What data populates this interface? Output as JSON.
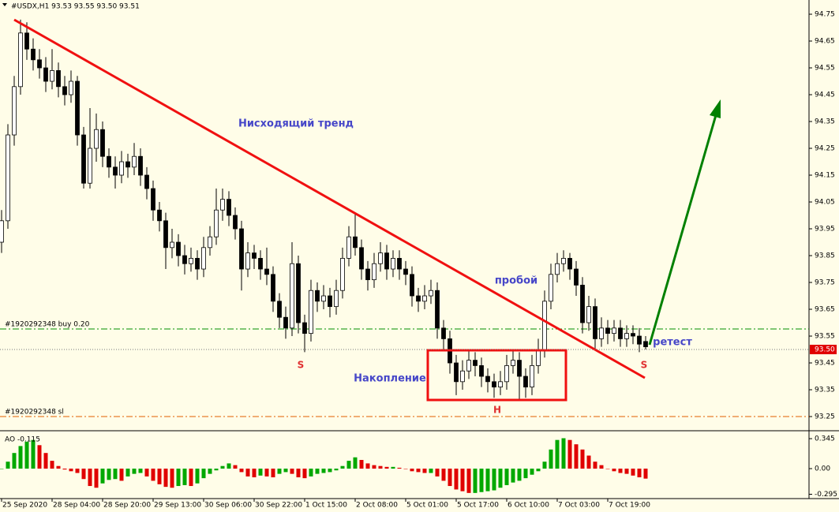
{
  "chart_data": [
    {
      "type": "candlestick",
      "header": "#USDX,H1  93.53 93.55 93.50 93.51",
      "ylim": [
        93.203,
        94.803
      ],
      "xlim": [
        -0.25,
        127.75
      ],
      "yticks": [
        94.75,
        94.65,
        94.55,
        94.45,
        94.35,
        94.25,
        94.15,
        94.05,
        93.95,
        93.85,
        93.75,
        93.65,
        93.55,
        93.45,
        93.35,
        93.25
      ],
      "bid": {
        "value": 93.5,
        "label": "93.50"
      },
      "up_color": "#ffffff",
      "down_color": "#000000",
      "wick_color": "#000000",
      "orders": {
        "buy": "#1920292348 buy 0.20",
        "sl": "#1920292348 sl"
      },
      "annotations": {
        "trend": "Нисходящий тренд",
        "breakout": "пробой",
        "retest": "ретест",
        "accumulation": "Накопление",
        "s1": "S",
        "s2": "S",
        "h": "H"
      },
      "ohlc": [
        [
          93.9,
          94.02,
          93.86,
          93.98
        ],
        [
          93.98,
          94.34,
          93.95,
          94.3
        ],
        [
          94.3,
          94.52,
          94.26,
          94.48
        ],
        [
          94.48,
          94.73,
          94.45,
          94.68
        ],
        [
          94.68,
          94.72,
          94.58,
          94.62
        ],
        [
          94.62,
          94.66,
          94.54,
          94.58
        ],
        [
          94.58,
          94.62,
          94.51,
          94.55
        ],
        [
          94.55,
          94.59,
          94.46,
          94.5
        ],
        [
          94.5,
          94.62,
          94.47,
          94.54
        ],
        [
          94.54,
          94.57,
          94.44,
          94.48
        ],
        [
          94.48,
          94.52,
          94.41,
          94.45
        ],
        [
          94.45,
          94.54,
          94.42,
          94.5
        ],
        [
          94.5,
          94.52,
          94.26,
          94.3
        ],
        [
          94.3,
          94.33,
          94.1,
          94.12
        ],
        [
          94.12,
          94.4,
          94.1,
          94.25
        ],
        [
          94.25,
          94.38,
          94.2,
          94.32
        ],
        [
          94.32,
          94.35,
          94.18,
          94.22
        ],
        [
          94.22,
          94.25,
          94.14,
          94.18
        ],
        [
          94.18,
          94.22,
          94.1,
          94.15
        ],
        [
          94.15,
          94.24,
          94.12,
          94.2
        ],
        [
          94.2,
          94.23,
          94.14,
          94.18
        ],
        [
          94.18,
          94.27,
          94.15,
          94.22
        ],
        [
          94.22,
          94.25,
          94.11,
          94.15
        ],
        [
          94.15,
          94.18,
          94.06,
          94.1
        ],
        [
          94.1,
          94.13,
          93.98,
          94.02
        ],
        [
          94.02,
          94.05,
          93.94,
          93.98
        ],
        [
          93.98,
          94.01,
          93.8,
          93.88
        ],
        [
          93.88,
          93.95,
          93.84,
          93.9
        ],
        [
          93.9,
          93.93,
          93.81,
          93.85
        ],
        [
          93.85,
          93.89,
          93.78,
          93.82
        ],
        [
          93.82,
          93.88,
          93.79,
          93.84
        ],
        [
          93.84,
          93.87,
          93.76,
          93.8
        ],
        [
          93.8,
          93.92,
          93.77,
          93.88
        ],
        [
          93.88,
          93.96,
          93.85,
          93.92
        ],
        [
          93.92,
          94.1,
          93.89,
          94.02
        ],
        [
          94.02,
          94.1,
          93.98,
          94.06
        ],
        [
          94.06,
          94.09,
          93.96,
          94.0
        ],
        [
          94.0,
          94.03,
          93.91,
          93.95
        ],
        [
          93.95,
          93.98,
          93.72,
          93.8
        ],
        [
          93.8,
          93.9,
          93.77,
          93.86
        ],
        [
          93.86,
          93.89,
          93.8,
          93.84
        ],
        [
          93.84,
          93.87,
          93.76,
          93.8
        ],
        [
          93.8,
          93.88,
          93.74,
          93.78
        ],
        [
          93.78,
          93.81,
          93.64,
          93.68
        ],
        [
          93.68,
          93.71,
          93.58,
          93.62
        ],
        [
          93.62,
          93.66,
          93.54,
          93.58
        ],
        [
          93.58,
          93.9,
          93.55,
          93.82
        ],
        [
          93.82,
          93.85,
          93.56,
          93.6
        ],
        [
          93.6,
          93.63,
          93.49,
          93.56
        ],
        [
          93.56,
          93.76,
          93.53,
          93.72
        ],
        [
          93.72,
          93.75,
          93.64,
          93.68
        ],
        [
          93.68,
          93.74,
          93.65,
          93.7
        ],
        [
          93.7,
          93.73,
          93.62,
          93.66
        ],
        [
          93.66,
          93.76,
          93.63,
          93.72
        ],
        [
          93.72,
          93.88,
          93.69,
          93.84
        ],
        [
          93.84,
          93.96,
          93.81,
          93.92
        ],
        [
          93.92,
          94.01,
          93.85,
          93.88
        ],
        [
          93.88,
          93.91,
          93.76,
          93.8
        ],
        [
          93.8,
          93.83,
          93.72,
          93.76
        ],
        [
          93.76,
          93.86,
          93.73,
          93.82
        ],
        [
          93.82,
          93.9,
          93.79,
          93.86
        ],
        [
          93.86,
          93.89,
          93.76,
          93.8
        ],
        [
          93.8,
          93.87,
          93.77,
          93.84
        ],
        [
          93.84,
          93.87,
          93.76,
          93.8
        ],
        [
          93.8,
          93.83,
          93.74,
          93.78
        ],
        [
          93.78,
          93.81,
          93.66,
          93.7
        ],
        [
          93.7,
          93.73,
          93.64,
          93.68
        ],
        [
          93.68,
          93.74,
          93.65,
          93.7
        ],
        [
          93.7,
          93.76,
          93.67,
          93.72
        ],
        [
          93.72,
          93.75,
          93.54,
          93.58
        ],
        [
          93.58,
          93.61,
          93.5,
          93.54
        ],
        [
          93.54,
          93.57,
          93.41,
          93.45
        ],
        [
          93.45,
          93.48,
          93.33,
          93.38
        ],
        [
          93.38,
          93.46,
          93.35,
          93.42
        ],
        [
          93.42,
          93.5,
          93.39,
          93.46
        ],
        [
          93.46,
          93.49,
          93.4,
          93.44
        ],
        [
          93.44,
          93.47,
          93.36,
          93.4
        ],
        [
          93.4,
          93.43,
          93.34,
          93.38
        ],
        [
          93.38,
          93.41,
          93.32,
          93.36
        ],
        [
          93.36,
          93.42,
          93.33,
          93.38
        ],
        [
          93.38,
          93.48,
          93.35,
          93.44
        ],
        [
          93.44,
          93.5,
          93.41,
          93.46
        ],
        [
          93.46,
          93.49,
          93.31,
          93.4
        ],
        [
          93.4,
          93.43,
          93.32,
          93.36
        ],
        [
          93.36,
          93.48,
          93.33,
          93.44
        ],
        [
          93.44,
          93.54,
          93.41,
          93.5
        ],
        [
          93.5,
          93.72,
          93.47,
          93.68
        ],
        [
          93.68,
          93.82,
          93.65,
          93.78
        ],
        [
          93.78,
          93.86,
          93.75,
          93.82
        ],
        [
          93.82,
          93.87,
          93.79,
          93.84
        ],
        [
          93.84,
          93.86,
          93.76,
          93.8
        ],
        [
          93.8,
          93.83,
          93.7,
          93.74
        ],
        [
          93.74,
          93.77,
          93.56,
          93.6
        ],
        [
          93.6,
          93.7,
          93.57,
          93.66
        ],
        [
          93.66,
          93.69,
          93.5,
          93.54
        ],
        [
          93.54,
          93.62,
          93.51,
          93.58
        ],
        [
          93.58,
          93.61,
          93.52,
          93.56
        ],
        [
          93.56,
          93.61,
          93.53,
          93.58
        ],
        [
          93.58,
          93.61,
          93.51,
          93.54
        ],
        [
          93.54,
          93.59,
          93.51,
          93.56
        ],
        [
          93.56,
          93.59,
          93.52,
          93.55
        ],
        [
          93.55,
          93.58,
          93.49,
          93.52
        ],
        [
          93.53,
          93.55,
          93.5,
          93.51
        ]
      ]
    },
    {
      "type": "bar",
      "label": "AO -0.115",
      "ylim": [
        -0.345,
        0.418
      ],
      "xlim": [
        -0.25,
        127.75
      ],
      "yticks": [
        0.345,
        {
          "value": 0,
          "label": "0.00"
        },
        -0.295
      ],
      "up_color": "#00a800",
      "down_color": "#e00000",
      "xticks": [
        {
          "value": 0,
          "label": "25 Sep 2020"
        },
        {
          "value": 8,
          "label": "28 Sep 04:00"
        },
        {
          "value": 16,
          "label": "28 Sep 20:00"
        },
        {
          "value": 24,
          "label": "29 Sep 13:00"
        },
        {
          "value": 32,
          "label": "30 Sep 06:00"
        },
        {
          "value": 40,
          "label": "30 Sep 22:00"
        },
        {
          "value": 48,
          "label": "1 Oct 15:00"
        },
        {
          "value": 56,
          "label": "2 Oct 08:00"
        },
        {
          "value": 64,
          "label": "5 Oct 01:00"
        },
        {
          "value": 72,
          "label": "5 Oct 17:00"
        },
        {
          "value": 80,
          "label": "6 Oct 10:00"
        },
        {
          "value": 88,
          "label": "7 Oct 03:00"
        },
        {
          "value": 96,
          "label": "7 Oct 19:00"
        }
      ],
      "values": [
        0.0,
        0.08,
        0.18,
        0.26,
        0.31,
        0.33,
        0.27,
        0.18,
        0.09,
        0.03,
        -0.01,
        -0.03,
        -0.05,
        -0.12,
        -0.2,
        -0.22,
        -0.17,
        -0.13,
        -0.12,
        -0.14,
        -0.09,
        -0.06,
        -0.05,
        -0.09,
        -0.14,
        -0.18,
        -0.21,
        -0.22,
        -0.2,
        -0.19,
        -0.2,
        -0.17,
        -0.11,
        -0.06,
        -0.02,
        0.03,
        0.06,
        0.04,
        -0.04,
        -0.09,
        -0.1,
        -0.08,
        -0.09,
        -0.1,
        -0.06,
        -0.04,
        -0.06,
        -0.1,
        -0.11,
        -0.09,
        -0.06,
        -0.05,
        -0.04,
        -0.02,
        0.03,
        0.09,
        0.13,
        0.1,
        0.06,
        0.04,
        0.03,
        0.02,
        0.02,
        0.01,
        0.0,
        -0.03,
        -0.04,
        -0.05,
        -0.05,
        -0.09,
        -0.14,
        -0.2,
        -0.24,
        -0.26,
        -0.28,
        -0.28,
        -0.27,
        -0.26,
        -0.25,
        -0.22,
        -0.19,
        -0.16,
        -0.14,
        -0.11,
        -0.07,
        -0.03,
        0.08,
        0.22,
        0.33,
        0.35,
        0.33,
        0.28,
        0.22,
        0.15,
        0.08,
        0.04,
        0.0,
        -0.03,
        -0.05,
        -0.06,
        -0.08,
        -0.1,
        -0.115
      ]
    }
  ]
}
